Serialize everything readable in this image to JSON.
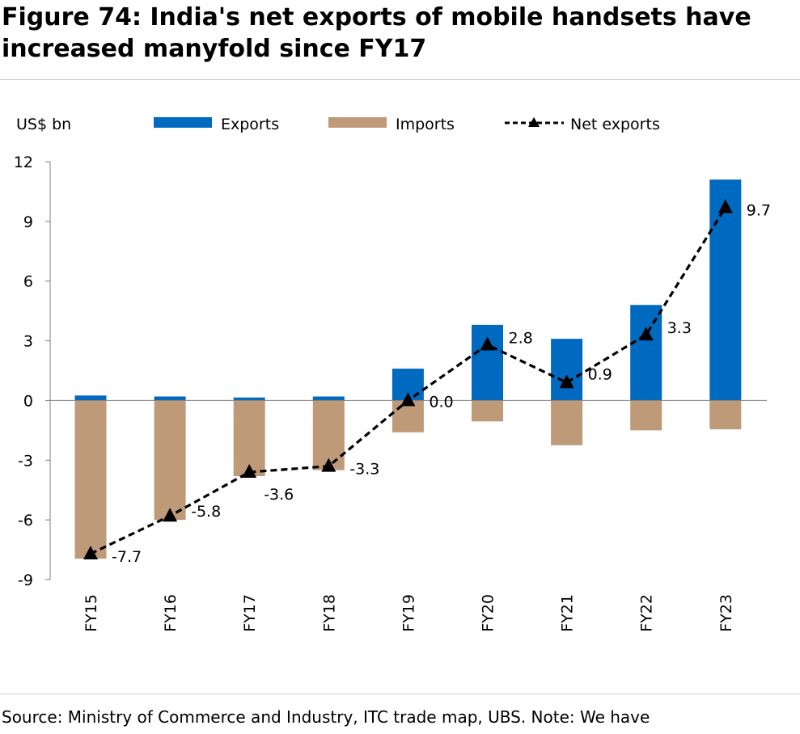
{
  "figure": {
    "title": "Figure 74: India's net exports of mobile handsets have increased manyfold since FY17",
    "source": "Source: Ministry of Commerce and Industry, ITC trade map, UBS. Note: We have"
  },
  "chart_data": {
    "type": "bar",
    "unit_label": "US$ bn",
    "categories": [
      "FY15",
      "FY16",
      "FY17",
      "FY18",
      "FY19",
      "FY20",
      "FY21",
      "FY22",
      "FY23"
    ],
    "series": [
      {
        "name": "Exports",
        "kind": "bar",
        "color": "#0069c0",
        "values": [
          0.25,
          0.2,
          0.15,
          0.2,
          1.6,
          3.8,
          3.1,
          4.8,
          11.1
        ]
      },
      {
        "name": "Imports",
        "kind": "bar",
        "color": "#bf9a78",
        "values": [
          -7.95,
          -6.0,
          -3.8,
          -3.5,
          -1.6,
          -1.05,
          -2.25,
          -1.5,
          -1.45
        ]
      },
      {
        "name": "Net exports",
        "kind": "line",
        "color": "#000000",
        "style": "dashed",
        "marker": "triangle",
        "values": [
          -7.7,
          -5.8,
          -3.6,
          -3.3,
          0.0,
          2.8,
          0.9,
          3.3,
          9.7
        ],
        "labels": [
          "-7.7",
          "-5.8",
          "-3.6",
          "-3.3",
          "0.0",
          "2.8",
          "0.9",
          "3.3",
          "9.7"
        ]
      }
    ],
    "yticks": [
      12,
      9,
      6,
      3,
      0,
      -3,
      -6,
      -9
    ],
    "ylim": [
      -9,
      12
    ],
    "legend_position": "top",
    "grid": false
  }
}
